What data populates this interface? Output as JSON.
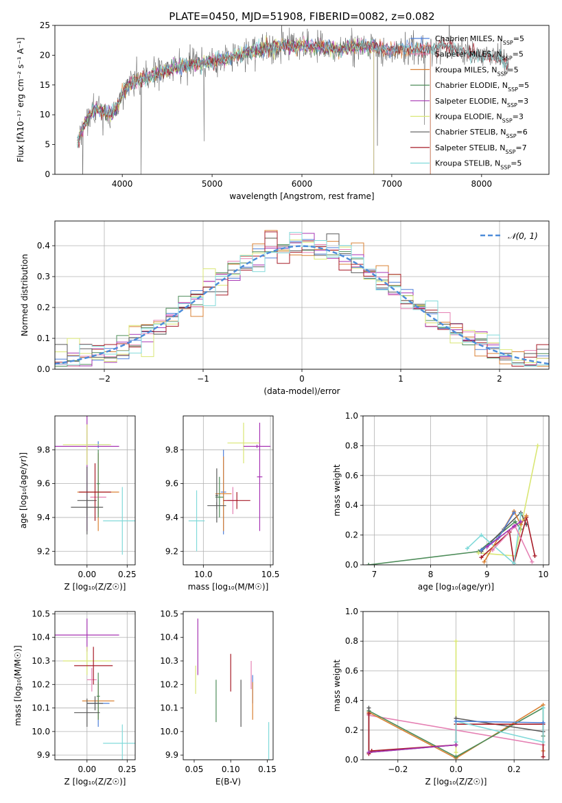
{
  "figure_title": "PLATE=0450, MJD=51908, FIBERID=0082, z=0.082",
  "colors": {
    "Chabrier MILES": "#4d7fd9",
    "Salpeter MILES": "#e580b3",
    "Kroupa MILES": "#d98033",
    "Chabrier ELODIE": "#4d8c59",
    "Salpeter ELODIE": "#a633b3",
    "Kroupa ELODIE": "#d9e673",
    "Chabrier STELIB": "#595959",
    "Salpeter STELIB": "#a61a26",
    "Kroupa STELIB": "#80d9d9",
    "normal": "#4d8cd9"
  },
  "chart_data": [
    {
      "id": "spectrum",
      "type": "line",
      "xlabel": "wavelength [Angstrom, rest frame]",
      "ylabel": "Flux [fλ10⁻¹⁷ erg cm⁻² s⁻¹ A⁻¹]",
      "xlim": [
        3250,
        8750
      ],
      "ylim": [
        0,
        25
      ],
      "xticks": [
        "4000",
        "5000",
        "6000",
        "7000",
        "8000"
      ],
      "yticks": [
        "0",
        "5",
        "10",
        "15",
        "20",
        "25"
      ],
      "legend_position": "right",
      "legend": [
        {
          "name": "Chabrier MILES",
          "text": "Chabrier MILES, N",
          "sub": "SSP",
          "tail": "=5"
        },
        {
          "name": "Salpeter MILES",
          "text": "Salpeter MILES, N",
          "sub": "SSP",
          "tail": "=5"
        },
        {
          "name": "Kroupa MILES",
          "text": "Kroupa MILES, N",
          "sub": "SSP",
          "tail": "=5"
        },
        {
          "name": "Chabrier ELODIE",
          "text": "Chabrier ELODIE, N",
          "sub": "SSP",
          "tail": "=5"
        },
        {
          "name": "Salpeter ELODIE",
          "text": "Salpeter ELODIE, N",
          "sub": "SSP",
          "tail": "=3"
        },
        {
          "name": "Kroupa ELODIE",
          "text": "Kroupa ELODIE, N",
          "sub": "SSP",
          "tail": "=3"
        },
        {
          "name": "Chabrier STELIB",
          "text": "Chabrier STELIB, N",
          "sub": "SSP",
          "tail": "=6"
        },
        {
          "name": "Salpeter STELIB",
          "text": "Salpeter STELIB, N",
          "sub": "SSP",
          "tail": "=7"
        },
        {
          "name": "Kroupa STELIB",
          "text": "Kroupa STELIB, N",
          "sub": "SSP",
          "tail": "=5"
        }
      ],
      "data_envelope": {
        "x": [
          3500,
          3600,
          3700,
          3800,
          3900,
          4000,
          4100,
          4200,
          4400,
          4600,
          4800,
          5000,
          5200,
          5400,
          5600,
          5800,
          6000,
          6200,
          6400,
          6600,
          6800,
          7000,
          7200,
          7400,
          7600,
          7800,
          8000,
          8200,
          8300
        ],
        "y": [
          5.5,
          9,
          11,
          10.5,
          10,
          13.5,
          15.5,
          16,
          17,
          18,
          18.5,
          19,
          19.5,
          20.5,
          21,
          21.5,
          21.5,
          21.5,
          21,
          21.5,
          21.5,
          21,
          21,
          21,
          21.5,
          20.5,
          20,
          19.5,
          18
        ]
      }
    },
    {
      "id": "residuals",
      "type": "histogram",
      "xlabel": "(data-model)/error",
      "ylabel": "Normed distribution",
      "xlim": [
        -2.5,
        2.5
      ],
      "ylim": [
        0,
        0.48
      ],
      "xticks": [
        "−2",
        "−1",
        "0",
        "1",
        "2"
      ],
      "yticks": [
        "0.0",
        "0.1",
        "0.2",
        "0.3",
        "0.4"
      ],
      "legend_label": "𝒩(0, 1)",
      "legend_position": "upper right",
      "grid": true,
      "bins": 40
    },
    {
      "id": "age-vs-Z",
      "type": "errorbar",
      "xlabel": "Z [log₁₀(Z/Z☉)]",
      "ylabel": "age  [log₁₀(age/yr)]",
      "xlim": [
        -0.2,
        0.3
      ],
      "ylim": [
        9.12,
        10.0
      ],
      "xticks": [
        "0.00",
        "0.25"
      ],
      "yticks": [
        "9.2",
        "9.4",
        "9.6",
        "9.8"
      ],
      "grid": true,
      "points": [
        {
          "series": "Chabrier MILES",
          "x": 0.07,
          "xerr": 0.07,
          "y": 9.83,
          "yerr": 0.02
        },
        {
          "series": "Salpeter MILES",
          "x": 0.07,
          "xerr": 0.05,
          "y": 9.52,
          "yerr": 0.1
        },
        {
          "series": "Kroupa MILES",
          "x": 0.07,
          "xerr": 0.13,
          "y": 9.55,
          "yerr": 0.23
        },
        {
          "series": "Chabrier ELODIE",
          "x": 0.07,
          "xerr": 0.01,
          "y": 9.6,
          "yerr": 0.2
        },
        {
          "series": "Salpeter ELODIE",
          "x": 0.0,
          "xerr": 0.2,
          "y": 9.82,
          "yerr": 0.5
        },
        {
          "series": "Kroupa ELODIE",
          "x": 0.0,
          "xerr": 0.15,
          "y": 9.83,
          "yerr": 0.12
        },
        {
          "series": "Chabrier STELIB",
          "x": 0.0,
          "xerr": 0.06,
          "y": 9.5,
          "yerr": 0.2
        },
        {
          "series": "Salpeter STELIB",
          "x": 0.05,
          "xerr": 0.1,
          "y": 9.55,
          "yerr": 0.17
        },
        {
          "series": "Kroupa STELIB",
          "x": 0.22,
          "xerr": 0.12,
          "y": 9.38,
          "yerr": 0.2
        },
        {
          "series": "Chabrier STELIB",
          "x": 0.0,
          "xerr": 0.1,
          "y": 9.46,
          "yerr": 0.05
        }
      ]
    },
    {
      "id": "age-vs-mass",
      "type": "errorbar",
      "xlabel": "mass [log₁₀(M/M☉)]",
      "ylabel": "",
      "xlim": [
        9.85,
        10.52
      ],
      "ylim": [
        9.12,
        10.0
      ],
      "xticks": [
        "10.0",
        "10.5"
      ],
      "yticks": [
        "9.2",
        "9.4",
        "9.6",
        "9.8"
      ],
      "grid": true,
      "points": [
        {
          "series": "Chabrier MILES",
          "x": 10.15,
          "xerr": 0.02,
          "y": 9.55,
          "yerr": 0.25
        },
        {
          "series": "Salpeter MILES",
          "x": 10.22,
          "xerr": 0.04,
          "y": 9.5,
          "yerr": 0.08
        },
        {
          "series": "Kroupa MILES",
          "x": 10.15,
          "xerr": 0.06,
          "y": 9.54,
          "yerr": 0.22
        },
        {
          "series": "Chabrier ELODIE",
          "x": 10.12,
          "xerr": 0.03,
          "y": 9.52,
          "yerr": 0.12
        },
        {
          "series": "Salpeter ELODIE",
          "x": 10.42,
          "xerr": 0.02,
          "y": 9.64,
          "yerr": 0.32
        },
        {
          "series": "Kroupa ELODIE",
          "x": 10.3,
          "xerr": 0.12,
          "y": 9.84,
          "yerr": 0.12
        },
        {
          "series": "Chabrier STELIB",
          "x": 10.1,
          "xerr": 0.01,
          "y": 9.53,
          "yerr": 0.16
        },
        {
          "series": "Salpeter STELIB",
          "x": 10.25,
          "xerr": 0.1,
          "y": 9.5,
          "yerr": 0.05
        },
        {
          "series": "Kroupa STELIB",
          "x": 9.95,
          "xerr": 0.06,
          "y": 9.38,
          "yerr": 0.18
        },
        {
          "series": "Chabrier STELIB",
          "x": 10.1,
          "xerr": 0.07,
          "y": 9.47,
          "yerr": 0.02
        },
        {
          "series": "Salpeter ELODIE",
          "x": 10.4,
          "xerr": 0.1,
          "y": 9.82,
          "yerr": 0.01
        }
      ]
    },
    {
      "id": "weights-vs-age",
      "type": "line",
      "xlabel": "age  [log₁₀(age/yr)]",
      "ylabel": "mass weight",
      "xlim": [
        6.8,
        10.1
      ],
      "ylim": [
        0,
        1
      ],
      "xticks": [
        "7",
        "8",
        "9",
        "10"
      ],
      "yticks": [
        "0.0",
        "0.2",
        "0.4",
        "0.6",
        "0.8",
        "1.0"
      ],
      "grid": true,
      "series": [
        {
          "name": "Chabrier ELODIE",
          "x": [
            6.9,
            8.85,
            9.5,
            9.6
          ],
          "y": [
            0.0,
            0.09,
            0.29,
            0.24
          ]
        },
        {
          "name": "Kroupa ELODIE",
          "x": [
            8.85,
            9.5,
            9.9
          ],
          "y": [
            0.08,
            0.06,
            0.8
          ]
        },
        {
          "name": "Chabrier STELIB",
          "x": [
            8.9,
            9.3,
            9.6,
            9.7
          ],
          "y": [
            0.09,
            0.24,
            0.35,
            0.27
          ]
        },
        {
          "name": "Salpeter STELIB",
          "x": [
            8.9,
            9.4,
            9.48,
            9.7,
            9.85
          ],
          "y": [
            0.05,
            0.22,
            0.01,
            0.32,
            0.06
          ]
        },
        {
          "name": "Kroupa STELIB",
          "x": [
            8.65,
            8.9,
            9.48,
            9.6
          ],
          "y": [
            0.11,
            0.2,
            0.01,
            0.34
          ]
        },
        {
          "name": "Kroupa MILES",
          "x": [
            8.95,
            9.48,
            9.6,
            9.7
          ],
          "y": [
            0.02,
            0.36,
            0.27,
            0.33
          ]
        },
        {
          "name": "Salpeter MILES",
          "x": [
            9.1,
            9.5,
            9.8
          ],
          "y": [
            0.1,
            0.26,
            0.02
          ]
        },
        {
          "name": "Chabrier MILES",
          "x": [
            8.9,
            9.2,
            9.48
          ],
          "y": [
            0.1,
            0.18,
            0.35
          ]
        },
        {
          "name": "Salpeter ELODIE",
          "x": [
            9.0,
            9.48,
            9.6
          ],
          "y": [
            0.12,
            0.26,
            0.29
          ]
        }
      ]
    },
    {
      "id": "mass-vs-Z",
      "type": "errorbar",
      "xlabel": "Z [log₁₀(Z/Z☉)]",
      "ylabel": "mass [log₁₀(M/M☉)]",
      "xlim": [
        -0.2,
        0.3
      ],
      "ylim": [
        9.88,
        10.51
      ],
      "xticks": [
        "0.00",
        "0.25"
      ],
      "yticks": [
        "9.9",
        "10.0",
        "10.1",
        "10.2",
        "10.3",
        "10.4",
        "10.5"
      ],
      "grid": true,
      "points": [
        {
          "series": "Chabrier MILES",
          "x": 0.07,
          "xerr": 0.07,
          "y": 10.12,
          "yerr": 0.1
        },
        {
          "series": "Salpeter MILES",
          "x": 0.03,
          "xerr": 0.03,
          "y": 10.22,
          "yerr": 0.05
        },
        {
          "series": "Kroupa MILES",
          "x": 0.07,
          "xerr": 0.1,
          "y": 10.13,
          "yerr": 0.08
        },
        {
          "series": "Chabrier ELODIE",
          "x": 0.07,
          "xerr": 0.01,
          "y": 10.15,
          "yerr": 0.1
        },
        {
          "series": "Salpeter ELODIE",
          "x": 0.0,
          "xerr": 0.2,
          "y": 10.41,
          "yerr": 0.07
        },
        {
          "series": "Kroupa ELODIE",
          "x": 0.0,
          "xerr": 0.15,
          "y": 10.3,
          "yerr": 0.06
        },
        {
          "series": "Chabrier STELIB",
          "x": 0.0,
          "xerr": 0.08,
          "y": 10.08,
          "yerr": 0.06
        },
        {
          "series": "Salpeter STELIB",
          "x": 0.04,
          "xerr": 0.12,
          "y": 10.28,
          "yerr": 0.08
        },
        {
          "series": "Kroupa STELIB",
          "x": 0.22,
          "xerr": 0.12,
          "y": 9.95,
          "yerr": 0.08
        },
        {
          "series": "Chabrier STELIB",
          "x": 0.05,
          "xerr": 0.05,
          "y": 10.12,
          "yerr": 0.03
        }
      ]
    },
    {
      "id": "mass-vs-EBV",
      "type": "errorbar",
      "xlabel": "E(B-V)",
      "ylabel": "",
      "xlim": [
        0.035,
        0.158
      ],
      "ylim": [
        9.88,
        10.51
      ],
      "xticks": [
        "0.05",
        "0.10",
        "0.15"
      ],
      "yticks": [
        "9.9",
        "10.0",
        "10.1",
        "10.2",
        "10.3",
        "10.4",
        "10.5"
      ],
      "grid": false,
      "points": [
        {
          "series": "Kroupa ELODIE",
          "x": 0.052,
          "y": 10.22,
          "yerr": 0.06
        },
        {
          "series": "Salpeter ELODIE",
          "x": 0.055,
          "y": 10.36,
          "yerr": 0.12
        },
        {
          "series": "Chabrier ELODIE",
          "x": 0.08,
          "y": 10.13,
          "yerr": 0.09
        },
        {
          "series": "Salpeter STELIB",
          "x": 0.1,
          "y": 10.25,
          "yerr": 0.08
        },
        {
          "series": "Chabrier STELIB",
          "x": 0.114,
          "y": 10.12,
          "yerr": 0.1
        },
        {
          "series": "Salpeter MILES",
          "x": 0.128,
          "y": 10.24,
          "yerr": 0.06
        },
        {
          "series": "Chabrier MILES",
          "x": 0.13,
          "y": 10.18,
          "yerr": 0.06
        },
        {
          "series": "Kroupa MILES",
          "x": 0.13,
          "y": 10.13,
          "yerr": 0.08
        },
        {
          "series": "Kroupa STELIB",
          "x": 0.152,
          "y": 9.96,
          "yerr": 0.08
        }
      ]
    },
    {
      "id": "weights-vs-Z",
      "type": "line",
      "xlabel": "Z [log₁₀(Z/Z☉)]",
      "ylabel": "mass weight",
      "xlim": [
        -0.32,
        0.32
      ],
      "ylim": [
        0,
        1
      ],
      "xticks": [
        "−0.2",
        "0.0",
        "0.2"
      ],
      "yticks": [
        "0.0",
        "0.2",
        "0.4",
        "0.6",
        "0.8",
        "1.0"
      ],
      "grid": true,
      "series": [
        {
          "name": "Salpeter MILES",
          "x": [
            -0.3,
            0.3
          ],
          "y": [
            0.3,
            0.1
          ]
        },
        {
          "name": "Kroupa MILES",
          "x": [
            -0.3,
            0.0,
            0.3,
            0.3
          ],
          "y": [
            0.32,
            0.01,
            0.37,
            0.06
          ]
        },
        {
          "name": "Chabrier ELODIE",
          "x": [
            -0.3,
            0.0,
            0.3,
            0.3
          ],
          "y": [
            0.33,
            0.02,
            0.35,
            0.16
          ]
        },
        {
          "name": "Kroupa ELODIE",
          "x": [
            0.0,
            0.0,
            0.0
          ],
          "y": [
            0.8,
            0.12,
            0.05
          ]
        },
        {
          "name": "Chabrier STELIB",
          "x": [
            -0.3,
            -0.3,
            0.0,
            0.0,
            0.3,
            0.3
          ],
          "y": [
            0.35,
            0.05,
            0.1,
            0.28,
            0.19,
            0.24
          ]
        },
        {
          "name": "Salpeter STELIB",
          "x": [
            -0.3,
            -0.3,
            -0.29,
            0.0,
            0.0,
            0.3,
            0.3
          ],
          "y": [
            0.31,
            0.04,
            0.06,
            0.1,
            0.24,
            0.24,
            0.02
          ]
        },
        {
          "name": "Kroupa STELIB",
          "x": [
            0.0,
            0.0,
            0.3,
            0.3
          ],
          "y": [
            0.12,
            0.26,
            0.12,
            0.35
          ]
        },
        {
          "name": "Chabrier MILES",
          "x": [
            0.0,
            0.3
          ],
          "y": [
            0.26,
            0.25
          ]
        },
        {
          "name": "Salpeter ELODIE",
          "x": [
            -0.3,
            0.0
          ],
          "y": [
            0.05,
            0.1
          ]
        }
      ]
    }
  ]
}
